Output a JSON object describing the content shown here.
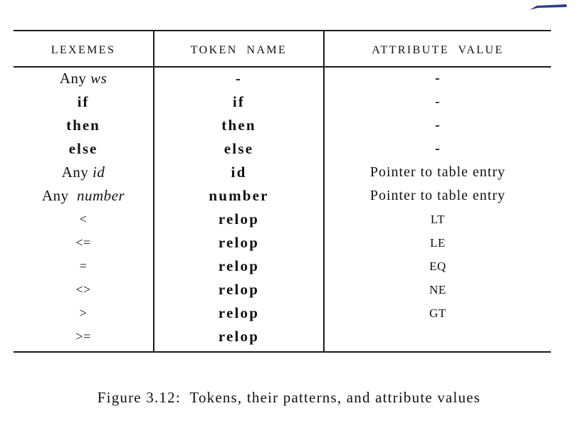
{
  "table": {
    "headers": [
      "LEXEMES",
      "TOKEN  NAME",
      "ATTRIBUTE  VALUE"
    ],
    "rows": [
      {
        "lexeme_prefix": "Any ",
        "lexeme_italic": "ws",
        "token": "-",
        "attribute": "-"
      },
      {
        "lexeme_prefix": "if",
        "lexeme_italic": "",
        "token": "if",
        "attribute": "-"
      },
      {
        "lexeme_prefix": "then",
        "lexeme_italic": "",
        "token": "then",
        "attribute": "-"
      },
      {
        "lexeme_prefix": "else",
        "lexeme_italic": "",
        "token": "else",
        "attribute": "-"
      },
      {
        "lexeme_prefix": "Any ",
        "lexeme_italic": "id",
        "token": "id",
        "attribute": "Pointer to table entry"
      },
      {
        "lexeme_prefix": "Any  ",
        "lexeme_italic": "number",
        "token": "number",
        "attribute": "Pointer to table entry"
      },
      {
        "lexeme_prefix": "<",
        "lexeme_italic": "",
        "token": "relop",
        "attribute": "LT"
      },
      {
        "lexeme_prefix": "<=",
        "lexeme_italic": "",
        "token": "relop",
        "attribute": "LE"
      },
      {
        "lexeme_prefix": "=",
        "lexeme_italic": "",
        "token": "relop",
        "attribute": "EQ"
      },
      {
        "lexeme_prefix": "<>",
        "lexeme_italic": "",
        "token": "relop",
        "attribute": "NE"
      },
      {
        "lexeme_prefix": ">",
        "lexeme_italic": "",
        "token": "relop",
        "attribute": "GT"
      },
      {
        "lexeme_prefix": ">=",
        "lexeme_italic": "",
        "token": "relop",
        "attribute": ""
      }
    ]
  },
  "caption": "Figure 3.12:  Tokens, their patterns, and attribute values",
  "colors": {
    "text": "#111111",
    "rule": "#1a1a1a",
    "corner_mark": "#2a3f8f"
  }
}
